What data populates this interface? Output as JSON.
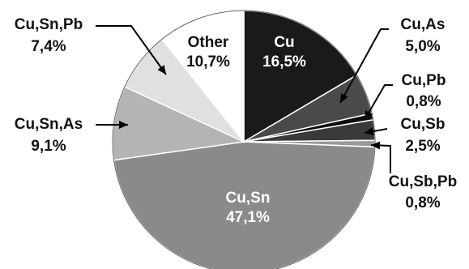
{
  "chart_data": {
    "type": "pie",
    "start_angle_deg": 0,
    "direction": "clockwise",
    "slices": [
      {
        "label": "Cu",
        "value": 16.5,
        "value_text": "16,5%",
        "color": "#1a1a1a"
      },
      {
        "label": "Cu,As",
        "value": 5.0,
        "value_text": "5,0%",
        "color": "#4a4a4a"
      },
      {
        "label": "Cu,Pb",
        "value": 0.8,
        "value_text": "0,8%",
        "color": "#0d0d0d"
      },
      {
        "label": "Cu,Sb",
        "value": 2.5,
        "value_text": "2,5%",
        "color": "#3a3a3a"
      },
      {
        "label": "Cu,Sb,Pb",
        "value": 0.8,
        "value_text": "0,8%",
        "color": "#9a9a9a"
      },
      {
        "label": "Cu,Sn",
        "value": 47.1,
        "value_text": "47,1%",
        "color": "#8a8a8a"
      },
      {
        "label": "Cu,Sn,As",
        "value": 9.1,
        "value_text": "9,1%",
        "color": "#b4b4b4"
      },
      {
        "label": "Cu,Sn,Pb",
        "value": 7.4,
        "value_text": "7,4%",
        "color": "#e0e0e0"
      },
      {
        "label": "Other",
        "value": 10.7,
        "value_text": "10,7%",
        "color": "#ffffff"
      }
    ]
  }
}
